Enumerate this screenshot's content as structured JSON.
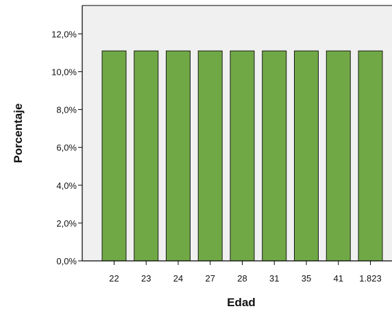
{
  "chart_data": {
    "type": "bar",
    "title": "",
    "xlabel": "Edad",
    "ylabel": "Porcentaje",
    "categories": [
      "22",
      "23",
      "24",
      "27",
      "28",
      "31",
      "35",
      "41",
      "1.823"
    ],
    "series": [
      {
        "values": [
          11.1,
          11.1,
          11.1,
          11.1,
          11.1,
          11.1,
          11.1,
          11.1,
          11.1
        ]
      }
    ],
    "ylim": [
      0,
      13.5
    ],
    "yticks": [
      0,
      2,
      4,
      6,
      8,
      10,
      12
    ],
    "ytick_labels": [
      "0,0%",
      "2,0%",
      "4,0%",
      "6,0%",
      "8,0%",
      "10,0%",
      "12,0%"
    ],
    "grid": false,
    "legend": "none",
    "colors": {
      "bar_fill": "#70a845",
      "bar_stroke": "#1a1a1a",
      "plot_background": "#f0f0f0",
      "axis": "#000000"
    }
  }
}
